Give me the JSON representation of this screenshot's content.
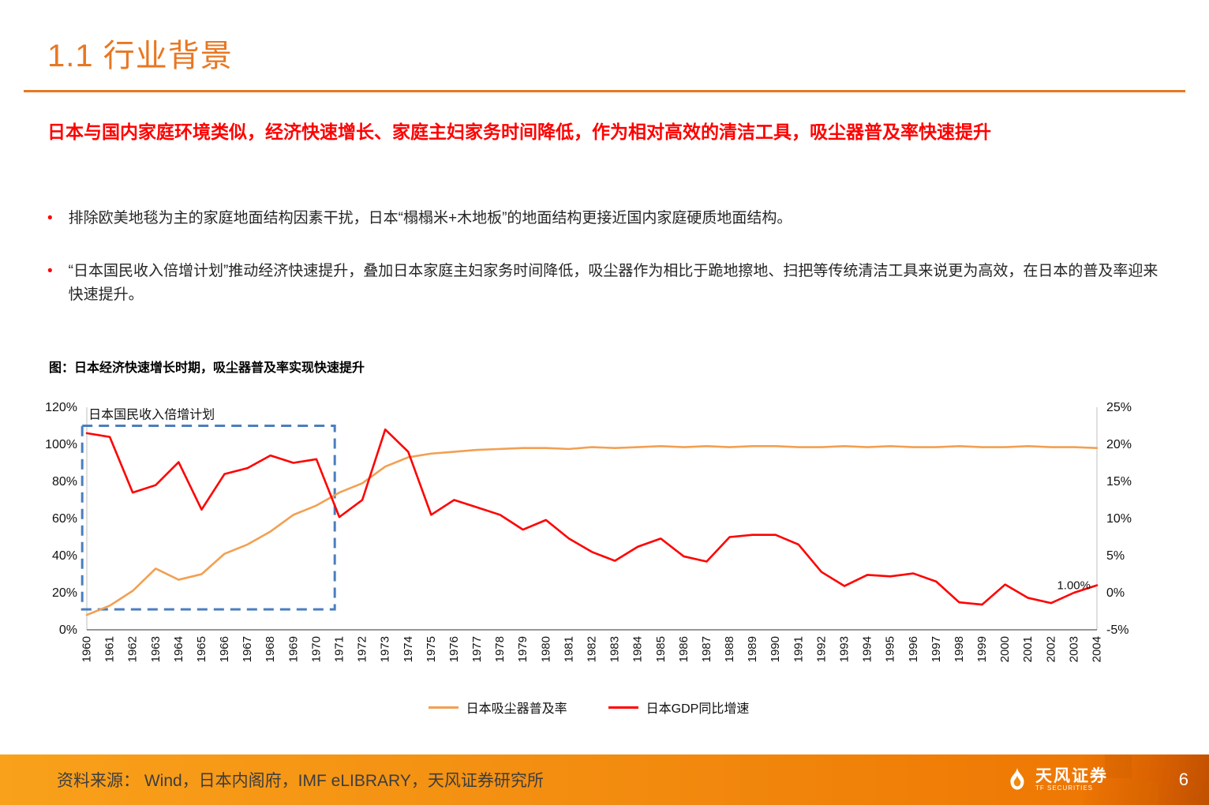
{
  "page": {
    "title": "1.1 行业背景",
    "page_number": "6"
  },
  "headline": "日本与国内家庭环境类似，经济快速增长、家庭主妇家务时间降低，作为相对高效的清洁工具，吸尘器普及率快速提升",
  "bullets": [
    {
      "marker": "•",
      "text": "排除欧美地毯为主的家庭地面结构因素干扰，日本“榻榻米+木地板”的地面结构更接近国内家庭硬质地面结构。"
    },
    {
      "marker": "•",
      "text": "“日本国民收入倍增计划”推动经济快速提升，叠加日本家庭主妇家务时间降低，吸尘器作为相比于跪地擦地、扫把等传统清洁工具来说更为高效，在日本的普及率迎来快速提升。"
    }
  ],
  "chart_caption": "图：日本经济快速增长时期，吸尘器普及率实现快速提升",
  "colors": {
    "accent_orange": "#E87722",
    "headline_red": "#FE0000",
    "penetration_line": "#F2A052",
    "gdp_line": "#FF0000",
    "annotation_blue": "#4A7EBF",
    "footer_orange": "#F28A0E"
  },
  "chart_data": {
    "type": "line",
    "title": "图：日本经济快速增长时期，吸尘器普及率实现快速提升",
    "grid": false,
    "legend_position": "bottom",
    "x": [
      1960,
      1961,
      1962,
      1963,
      1964,
      1965,
      1966,
      1967,
      1968,
      1969,
      1970,
      1971,
      1972,
      1973,
      1974,
      1975,
      1976,
      1977,
      1978,
      1979,
      1980,
      1981,
      1982,
      1983,
      1984,
      1985,
      1986,
      1987,
      1988,
      1989,
      1990,
      1991,
      1992,
      1993,
      1994,
      1995,
      1996,
      1997,
      1998,
      1999,
      2000,
      2001,
      2002,
      2003,
      2004
    ],
    "left_axis": {
      "min": 0,
      "max": 120,
      "ticks": [
        {
          "v": 0,
          "label": "0%"
        },
        {
          "v": 20,
          "label": "20%"
        },
        {
          "v": 40,
          "label": "40%"
        },
        {
          "v": 60,
          "label": "60%"
        },
        {
          "v": 80,
          "label": "80%"
        },
        {
          "v": 100,
          "label": "100%"
        },
        {
          "v": 120,
          "label": "120%"
        }
      ]
    },
    "right_axis": {
      "min": -5,
      "max": 25,
      "ticks": [
        {
          "v": -5,
          "label": "-5%"
        },
        {
          "v": 0,
          "label": "0%"
        },
        {
          "v": 5,
          "label": "5%"
        },
        {
          "v": 10,
          "label": "10%"
        },
        {
          "v": 15,
          "label": "15%"
        },
        {
          "v": 20,
          "label": "20%"
        },
        {
          "v": 25,
          "label": "25%"
        }
      ]
    },
    "series": [
      {
        "name": "日本吸尘器普及率",
        "axis": "left",
        "color": "#F2A052",
        "values": [
          8,
          13,
          21,
          33,
          27,
          30,
          41,
          46,
          53,
          62,
          67,
          74,
          79,
          88,
          93,
          95,
          96,
          97,
          97.5,
          98,
          98,
          97.5,
          98.5,
          98,
          98.5,
          99,
          98.5,
          99,
          98.5,
          99,
          99,
          98.5,
          98.5,
          99,
          98.5,
          99,
          98.5,
          98.5,
          99,
          98.5,
          98.5,
          99,
          98.5,
          98.5,
          98
        ]
      },
      {
        "name": "日本GDP同比增速",
        "axis": "right",
        "color": "#FF0000",
        "values": [
          21.5,
          21.0,
          13.5,
          14.5,
          17.6,
          11.2,
          16.0,
          16.8,
          18.5,
          17.5,
          18.0,
          10.2,
          12.5,
          22.0,
          19.0,
          10.5,
          12.5,
          11.5,
          10.5,
          8.5,
          9.8,
          7.3,
          5.5,
          4.3,
          6.2,
          7.3,
          4.9,
          4.2,
          7.5,
          7.8,
          7.8,
          6.5,
          2.8,
          0.9,
          2.4,
          2.2,
          2.6,
          1.5,
          -1.3,
          -1.6,
          1.1,
          -0.7,
          -1.4,
          0.0,
          1.0
        ]
      }
    ],
    "annotation": {
      "label": "日本国民收入倍增计划",
      "x_from": 1959.8,
      "x_to": 1970.8,
      "y_from": 11,
      "y_to": 110,
      "color": "#4A7EBF"
    },
    "end_label": {
      "series": "日本GDP同比增速",
      "text": "1.00%"
    }
  },
  "footer": {
    "source": "资料来源： Wind，日本内阁府，IMF eLIBRARY，天风证券研究所",
    "logo_name": "天风证券",
    "logo_sub": "TF SECURITIES"
  }
}
